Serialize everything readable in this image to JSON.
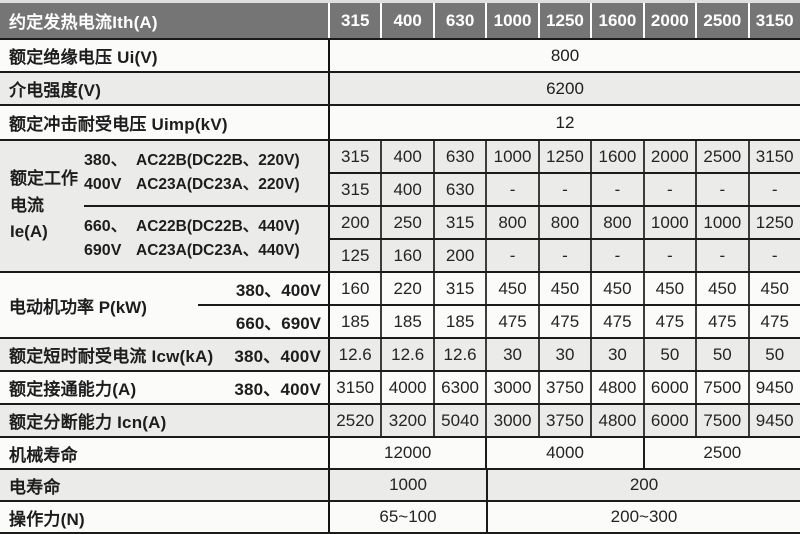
{
  "table": {
    "header": {
      "label": "约定发热电流Ith(A)",
      "columns": [
        "315",
        "400",
        "630",
        "1000",
        "1250",
        "1600",
        "2000",
        "2500",
        "3150"
      ]
    },
    "ui": {
      "label": "额定绝缘电压 Ui(V)",
      "value": "800"
    },
    "dielectric": {
      "label": "介电强度(V)",
      "value": "6200"
    },
    "uimp": {
      "label": "额定冲击耐受电压 Uimp(kV)",
      "value": "12"
    },
    "ie": {
      "label": "额定工作电流 Ie(A)",
      "groups": [
        {
          "volt_line1": "380、",
          "volt_line2": "400V",
          "spec_line1": "AC22B(DC22B、220V)",
          "spec_line2": "AC23A(DC23A、220V)",
          "row_a": [
            "315",
            "400",
            "630",
            "1000",
            "1250",
            "1600",
            "2000",
            "2500",
            "3150"
          ],
          "row_b": [
            "315",
            "400",
            "630",
            "-",
            "-",
            "-",
            "-",
            "-",
            "-"
          ]
        },
        {
          "volt_line1": "660、",
          "volt_line2": "690V",
          "spec_line1": "AC22B(DC22B、440V)",
          "spec_line2": "AC23A(DC23A、440V)",
          "row_a": [
            "200",
            "250",
            "315",
            "800",
            "800",
            "800",
            "1000",
            "1000",
            "1250"
          ],
          "row_b": [
            "125",
            "160",
            "200",
            "-",
            "-",
            "-",
            "-",
            "-",
            "-"
          ]
        }
      ]
    },
    "motor": {
      "label": "电动机功率 P(kW)",
      "rows": [
        {
          "volt": "380、400V",
          "values": [
            "160",
            "220",
            "315",
            "450",
            "450",
            "450",
            "450",
            "450",
            "450"
          ]
        },
        {
          "volt": "660、690V",
          "values": [
            "185",
            "185",
            "185",
            "475",
            "475",
            "475",
            "475",
            "475",
            "475"
          ]
        }
      ]
    },
    "icw": {
      "label": "额定短时耐受电流 Icw(kA)",
      "volt": "380、400V",
      "values": [
        "12.6",
        "12.6",
        "12.6",
        "30",
        "30",
        "30",
        "50",
        "50",
        "50"
      ]
    },
    "making": {
      "label": "额定接通能力(A)",
      "volt": "380、400V",
      "values": [
        "3150",
        "4000",
        "6300",
        "3000",
        "3750",
        "4800",
        "6000",
        "7500",
        "9450"
      ]
    },
    "breaking": {
      "label": "额定分断能力 Icn(A)",
      "values": [
        "2520",
        "3200",
        "5040",
        "3000",
        "3750",
        "4800",
        "6000",
        "7500",
        "9450"
      ]
    },
    "mech_life": {
      "label": "机械寿命",
      "cells": [
        {
          "text": "12000",
          "span": 3
        },
        {
          "text": "4000",
          "span": 3
        },
        {
          "text": "2500",
          "span": 3
        }
      ]
    },
    "elec_life": {
      "label": "电寿命",
      "cells": [
        {
          "text": "1000",
          "span": 3
        },
        {
          "text": "200",
          "span": 6
        }
      ]
    },
    "force": {
      "label": "操作力(N)",
      "cells": [
        {
          "text": "65~100",
          "span": 3
        },
        {
          "text": "200~300",
          "span": 6
        }
      ]
    },
    "colors": {
      "header_bg": "#757575",
      "header_text": "#ffffff",
      "row_gray": "#ebebe9",
      "row_white": "#fbfbfa",
      "border": "#1b1b1b"
    }
  }
}
